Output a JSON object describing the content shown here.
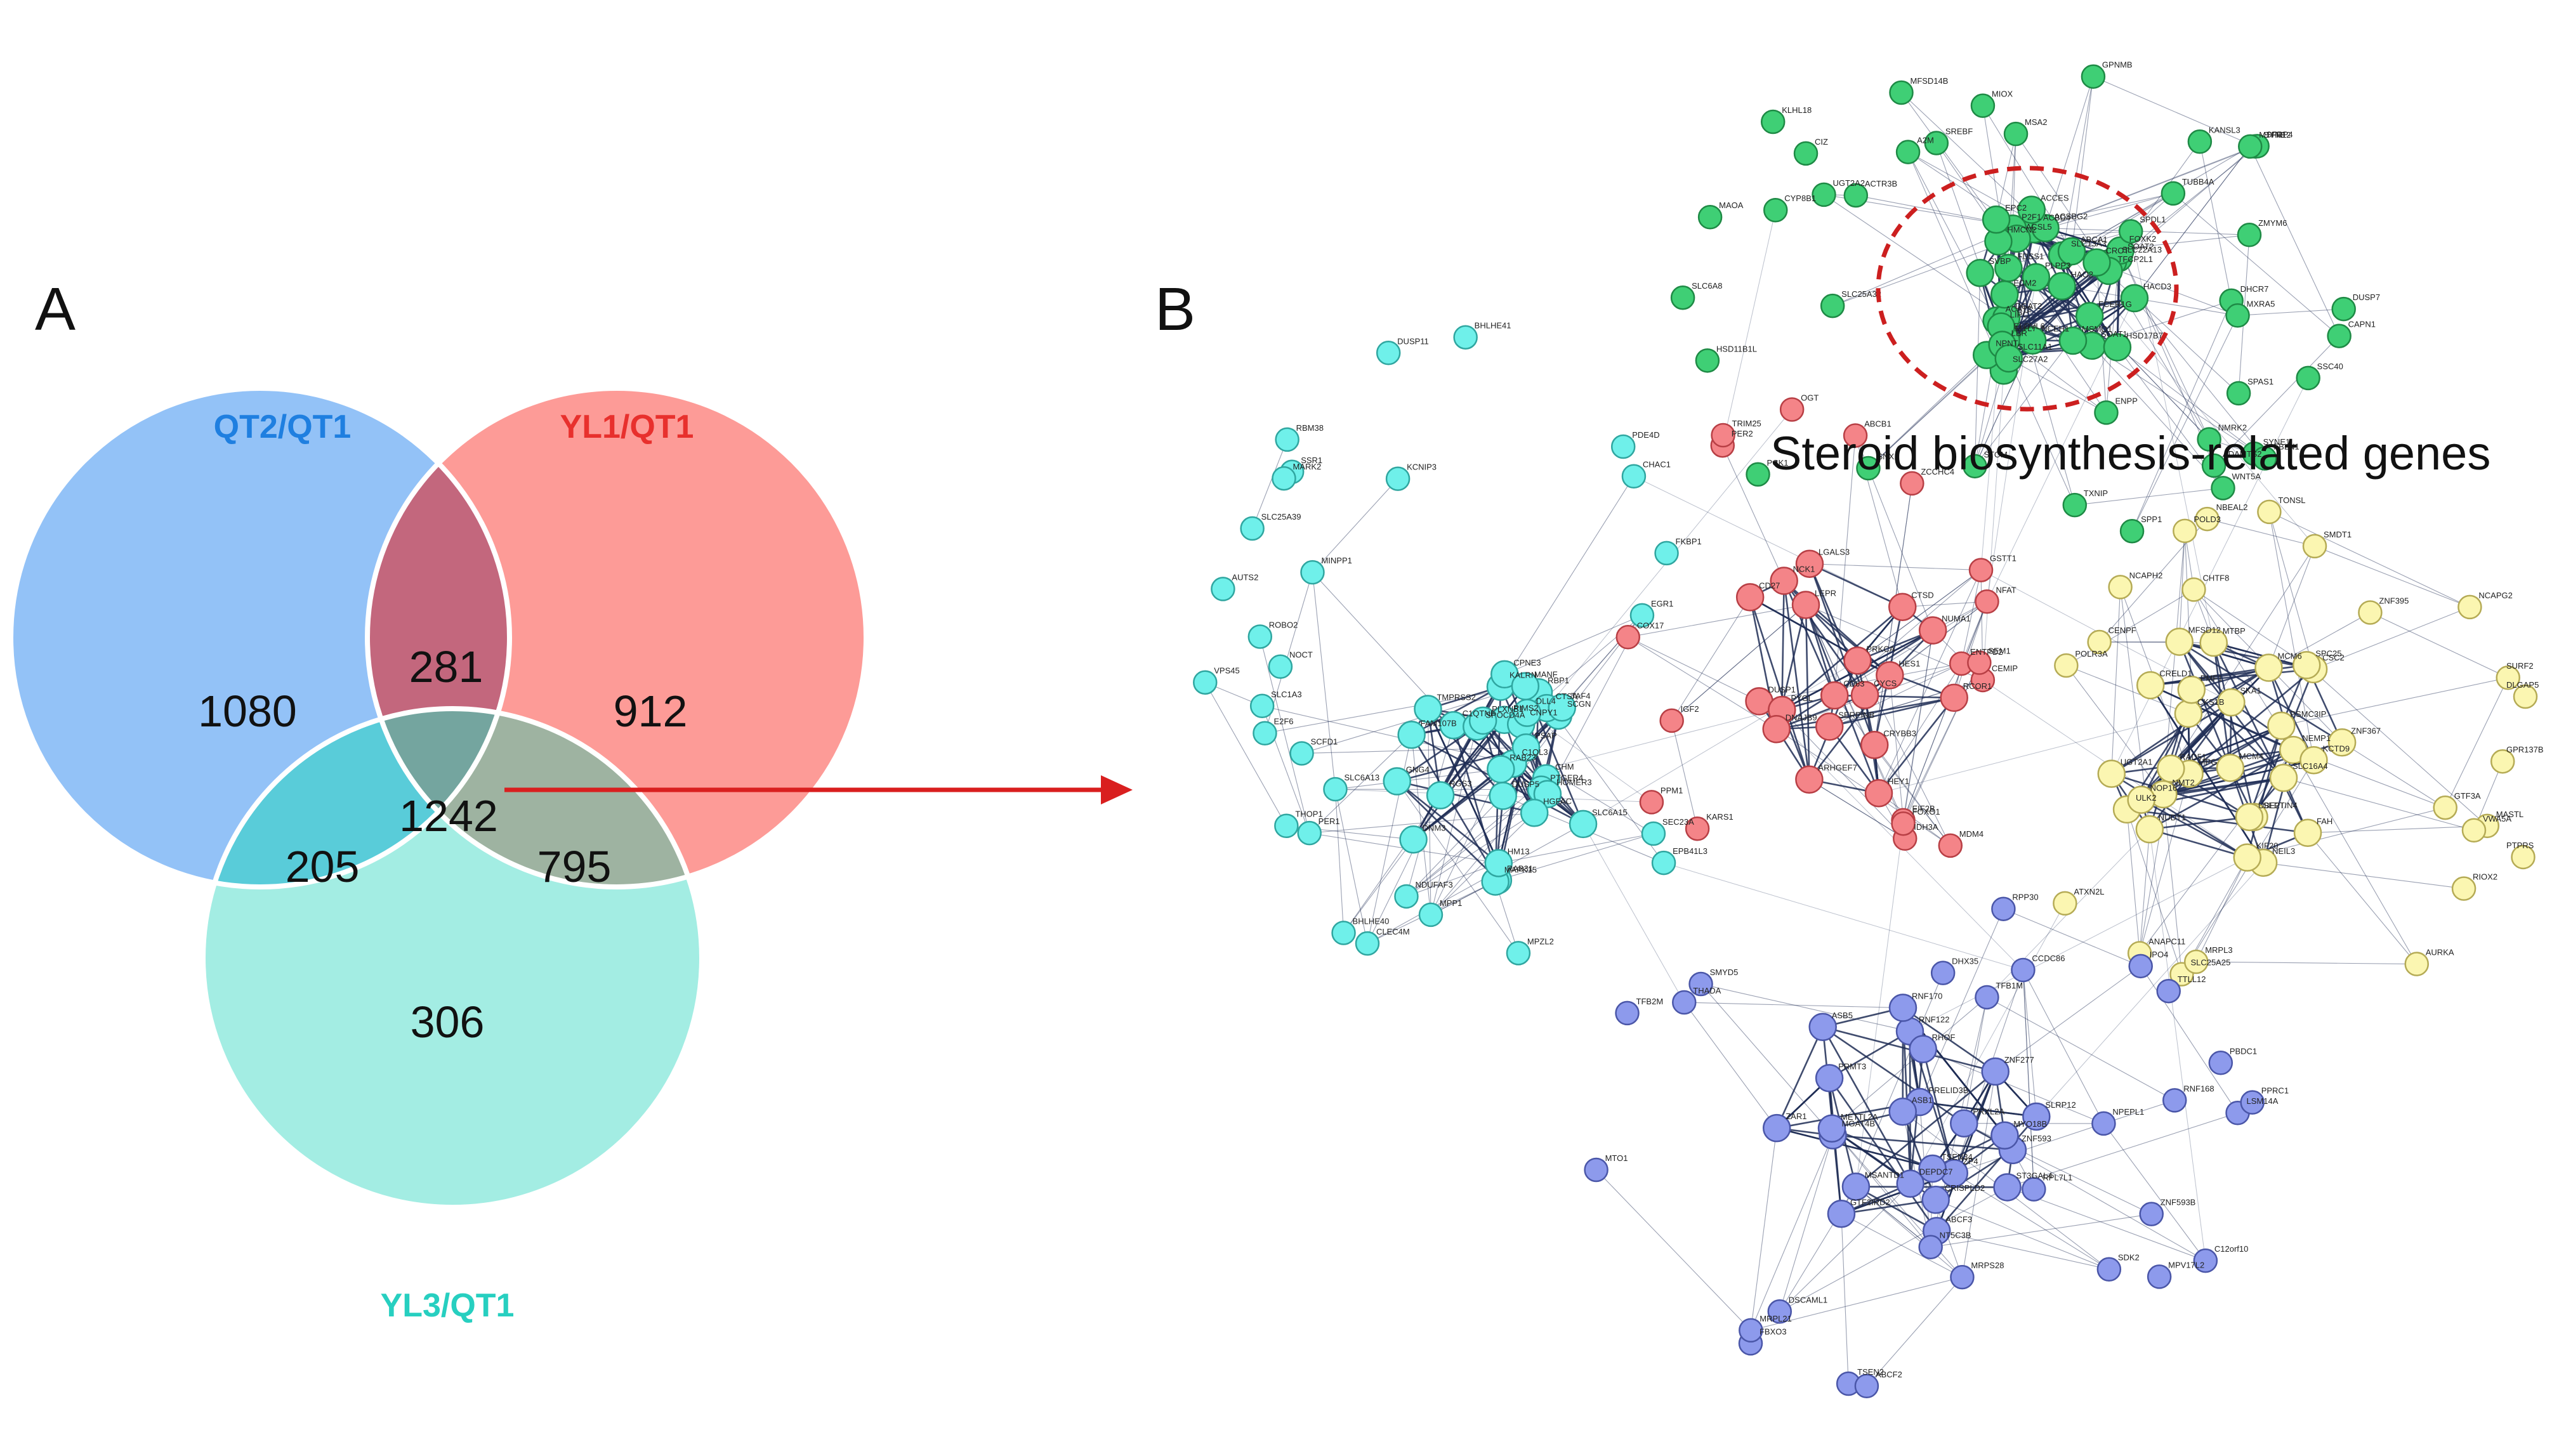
{
  "panel_a": {
    "letter": "A",
    "sets": [
      {
        "key": "qt2",
        "label": "QT2/QT1",
        "color": "#93c2f7",
        "label_color": "#1f7fe0"
      },
      {
        "key": "yl1",
        "label": "YL1/QT1",
        "color": "#fd9b97",
        "label_color": "#e8302d"
      },
      {
        "key": "yl3",
        "label": "YL3/QT1",
        "color": "#a3ede3",
        "label_color": "#27cfc0"
      }
    ],
    "regions": {
      "qt2_only": "1080",
      "yl1_only": "912",
      "yl3_only": "306",
      "qt2_yl1": "281",
      "qt2_yl3": "205",
      "yl1_yl3": "795",
      "all": "1242"
    },
    "region_colors": {
      "qt2_yl1": "#c3677d",
      "qt2_yl3": "#59ccd9",
      "yl1_yl3": "#9eb3a1",
      "all": "#74a59f"
    },
    "arrow_color": "#d91f1f"
  },
  "panel_b": {
    "letter": "B",
    "highlight_label": "Steroid biosynthesis-related genes",
    "highlight_circle_color": "#cc1f1f",
    "clusters": [
      {
        "name": "green",
        "color": "#3fcf75",
        "stroke": "#1e8a45"
      },
      {
        "name": "cyan",
        "color": "#6ff0ea",
        "stroke": "#2fa6a0"
      },
      {
        "name": "red",
        "color": "#f48488",
        "stroke": "#b83f45"
      },
      {
        "name": "yellow",
        "color": "#fbf6b1",
        "stroke": "#b5ab55"
      },
      {
        "name": "blue",
        "color": "#8d9aec",
        "stroke": "#4a56a8"
      }
    ],
    "edge_color": "#1f2d55",
    "gene_labels": {
      "green": [
        "HACD3",
        "NCEH1",
        "ACBD4",
        "SLC27A2",
        "ACSBG2",
        "P2F1",
        "SLC13A3",
        "NPNT",
        "PLPP3",
        "ACSL5",
        "SOAT2",
        "SOAT1",
        "SLC22A13",
        "HMCN2",
        "FOXK2",
        "ELOVL6",
        "ABCA1",
        "MSMO1",
        "ACAT2",
        "TFCP2L1",
        "ACCES",
        "FCER1G",
        "SVBP",
        "DGAT2",
        "HAO2",
        "MYL7",
        "EPC2",
        "ECM2",
        "LIPC",
        "LBR",
        "SLC11A1",
        "FDSS1",
        "CROT",
        "KANSL3",
        "CIZ",
        "SLC6A8",
        "ZMYM6",
        "SREBF",
        "CYP8B1",
        "SNX1",
        "GPNMB",
        "SYNE1",
        "SPAS1",
        "ENPP",
        "DHCR7",
        "ACTR3B",
        "HSD11B1L",
        "WNT5A",
        "SYNE2",
        "SFRP4",
        "MSA2",
        "MXRA5",
        "HSD17B7",
        "UGT2A2",
        "MIOX",
        "A2M",
        "TUBB4A",
        "PCK1",
        "NMRK2",
        "DUSP7",
        "KLHL18",
        "CAPN1",
        "SPP1",
        "MAOA",
        "STOM",
        "TXNIP",
        "SSC40",
        "MFSD14B",
        "SLC25A32",
        "FBLN1",
        "ADAMTS2",
        "SPDL1",
        "MTFR1"
      ],
      "cyan": [
        "C1QL3",
        "RIMS2",
        "DNM3",
        "RAB23",
        "CHM",
        "C1QTNF",
        "PTGER4",
        "KALRN",
        "RAB31",
        "CNPY1",
        "RGS3",
        "MAPK15",
        "SCGN",
        "GNG4",
        "RBP1",
        "CPNE3",
        "SPOCD4A",
        "PLXNB1",
        "PSAP",
        "CTSA",
        "DLL4",
        "MANF",
        "HOMER3",
        "DUSP5",
        "FAM107B",
        "TMPRSS2",
        "TAF4",
        "MPZL2",
        "E2F6",
        "AUTS2",
        "ROBO2",
        "NOCT",
        "DUSP11",
        "NDUFAF3",
        "SSR1",
        "FKBP1",
        "CLEC4M",
        "SLC25A39",
        "MINPP1",
        "HM13",
        "BHLHE40",
        "PDE4D",
        "PER1",
        "SLC6A13",
        "HGFAC",
        "SLC1A3",
        "SEC23A",
        "THOP1",
        "EPB41L3",
        "MPP1",
        "SLC6A15",
        "SCFD1",
        "MARK2",
        "BHLHE41",
        "VPS45",
        "KCNIP3",
        "RBM38",
        "CHAC1",
        "EGR1"
      ],
      "red": [
        "ARHGEF7",
        "HEY1",
        "CTSD",
        "CRYBB3",
        "LEPR",
        "DUSP1",
        "PYGL",
        "HES1",
        "CD27",
        "RCOR1",
        "CYCS",
        "LGALS3",
        "NCK1",
        "PRKCA",
        "SERPINB",
        "DNAJB9",
        "CD63",
        "IDH3A",
        "NUMA1",
        "COX17",
        "MDM4",
        "PER2",
        "GSTT1",
        "EIF2B",
        "IGF2",
        "FOXO1",
        "ABCB1",
        "TRIM25",
        "ZCCHC4",
        "ENTPD2",
        "NFAT",
        "OGT",
        "PPM1",
        "KARS1",
        "CEMIP",
        "SEM1"
      ],
      "yellow": [
        "CKS1B",
        "CSC2",
        "SEPTIN4",
        "FAH",
        "UBE2T",
        "SPC25",
        "SKA1",
        "MFSD12",
        "ZNF367",
        "MPG",
        "NEMP1",
        "UGT2A1",
        "CRELD1",
        "KCTD9",
        "NEIL3",
        "SLC16A4",
        "PMF1",
        "PSMC3IP",
        "KIF20",
        "ULK2",
        "MCM4",
        "MCM6",
        "NUDT1",
        "NCAPH2",
        "CHTF8",
        "NCAPG2",
        "GPR137B",
        "MASTL",
        "ANAPC11",
        "RAD51",
        "DLGAP5",
        "SMDT1",
        "CENPF",
        "POLD3",
        "SLC25A25",
        "SURF2",
        "TONSL",
        "NBEAL2",
        "RIOX2",
        "ATXN2L",
        "AURKA",
        "MRPL3",
        "NMT2",
        "MTBP",
        "NOP16",
        "GTF3A",
        "POLR3A",
        "ZNF395",
        "VWA5A",
        "PTPRS"
      ],
      "blue": [
        "ZNF593",
        "SLRP12",
        "CRISPLD2",
        "PRMT3",
        "ABCF3",
        "RNF122",
        "MYO18B",
        "DEPDC7",
        "ZNF277",
        "PRELID3B",
        "RNF170",
        "ASB1",
        "GTF2IRD2",
        "ZAR1",
        "ZP4",
        "PRXL2A",
        "ASB5",
        "ST3GAL4",
        "MGAT4B",
        "METTL2A",
        "RHOF",
        "MSANTD1",
        "TSEN34",
        "TSEN2",
        "NPEPL1",
        "THADA",
        "SMYD5",
        "C12orf10",
        "DHX35",
        "RPP30",
        "MPV17L2",
        "CCDC86",
        "FBXO3",
        "PBDC1",
        "TTLL12",
        "DSCAML1",
        "SDK2",
        "RPL7L1",
        "LSM14A",
        "IPO4",
        "MRPL21",
        "TFB2M",
        "MRPS28",
        "PPRC1",
        "TFB1M",
        "RNF168",
        "MTO1",
        "ABCF2",
        "NT5C3B",
        "ZNF593B"
      ]
    }
  }
}
